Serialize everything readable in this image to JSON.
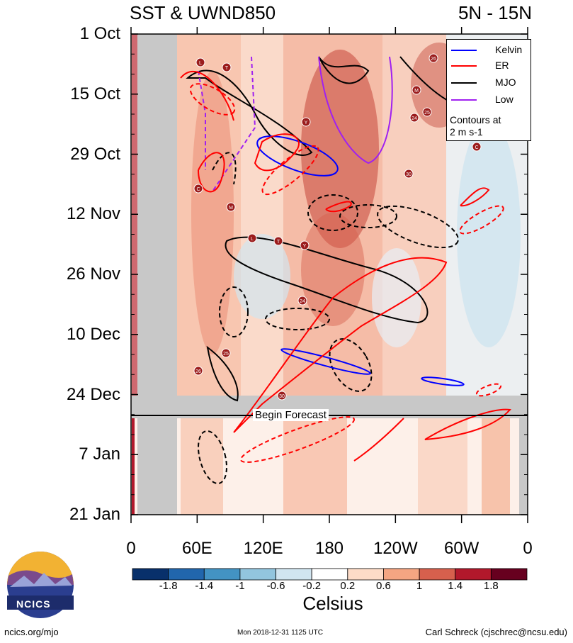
{
  "header": {
    "title": "SST & UWND850",
    "region": "5N - 15N"
  },
  "chart_data": {
    "type": "heatmap",
    "title": "SST & UWND850",
    "subtitle": "5N - 15N",
    "y_ticks": [
      "1 Oct",
      "15 Oct",
      "29 Oct",
      "12 Nov",
      "26 Nov",
      "10 Dec",
      "24 Dec",
      "7 Jan",
      "21 Jan"
    ],
    "x_ticks": [
      "0",
      "60E",
      "120E",
      "180",
      "120W",
      "60W",
      "0"
    ],
    "colorbar": {
      "label": "Celsius",
      "levels": [
        "-1.8",
        "-1.4",
        "-1",
        "-0.6",
        "-0.2",
        "0.2",
        "0.6",
        "1",
        "1.4",
        "1.8"
      ],
      "colors": [
        "#08306b",
        "#2166ac",
        "#4393c3",
        "#92c5de",
        "#d1e5f0",
        "#ffffff",
        "#fddbc7",
        "#f4a582",
        "#d6604d",
        "#b2182b",
        "#67001f"
      ]
    },
    "legend": [
      {
        "name": "Kelvin",
        "color": "#0000ff"
      },
      {
        "name": "ER",
        "color": "#ff0000"
      },
      {
        "name": "MJO",
        "color": "#000000"
      },
      {
        "name": "Low",
        "color": "#a020f0"
      }
    ],
    "legend_note": [
      "Contours at",
      "2 m s-1"
    ],
    "annotation": "Begin Forecast",
    "storm_labels": [
      "L",
      "T",
      "Y",
      "24",
      "25",
      "26",
      "30",
      "C",
      "M"
    ]
  },
  "footer": {
    "site": "ncics.org/mjo",
    "timestamp": "Mon 2018-12-31 1125 UTC",
    "author": "Carl Schreck (cjschrec@ncsu.edu)",
    "logo_text": "NCICS"
  }
}
